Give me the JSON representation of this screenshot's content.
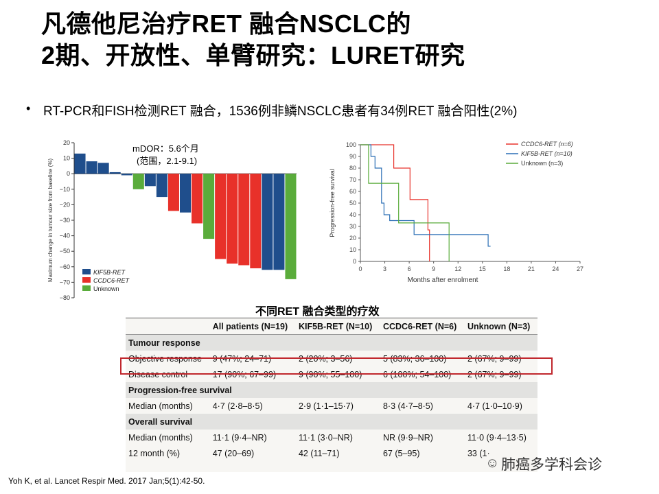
{
  "slide": {
    "title_line1": "凡德他尼治疗RET 融合NSCLC的",
    "title_line2": "2期、开放性、单臂研究：LURET研究",
    "bullet_marker": "•",
    "bullet_text": "RT-PCR和FISH检测RET 融合，1536例非鳞NSCLC患者有34例RET 融合阳性(2%)",
    "mdor_line1": "mDOR：5.6个月",
    "mdor_line2": "(范围，2.1-9.1)",
    "table_caption": "不同RET 融合类型的疗效",
    "reference": "Yoh K, et al. Lancet Respir Med. 2017 Jan;5(1):42-50.",
    "watermark": "肺癌多学科会诊",
    "watermark_icon": "wechat-icon"
  },
  "chart_data": [
    {
      "type": "bar",
      "ylabel": "Maximum change in tumour size from baseline (%)",
      "ylim": [
        -80,
        20
      ],
      "yticks": [
        "20",
        "10",
        "0",
        "−10",
        "−20",
        "−30",
        "−40",
        "−50",
        "−60",
        "−70",
        "−80"
      ],
      "legend": [
        {
          "name": "KIF5B-RET",
          "color": "#1f4e8c"
        },
        {
          "name": "CCDC6-RET",
          "color": "#e8312a"
        },
        {
          "name": "Unknown",
          "color": "#5aac3b"
        }
      ],
      "values": [
        13,
        8,
        7,
        1,
        -1,
        -10,
        -8,
        -15,
        -24,
        -25,
        -32,
        -42,
        -55,
        -58,
        -59,
        -61,
        -62,
        -62,
        -68
      ],
      "groups": [
        "KIF5B-RET",
        "KIF5B-RET",
        "KIF5B-RET",
        "KIF5B-RET",
        "KIF5B-RET",
        "Unknown",
        "KIF5B-RET",
        "KIF5B-RET",
        "CCDC6-RET",
        "KIF5B-RET",
        "CCDC6-RET",
        "Unknown",
        "CCDC6-RET",
        "CCDC6-RET",
        "CCDC6-RET",
        "CCDC6-RET",
        "KIF5B-RET",
        "KIF5B-RET",
        "Unknown"
      ]
    },
    {
      "type": "line",
      "xlabel": "Months after enrolment",
      "ylabel": "Progression-free survival",
      "xlim": [
        0,
        27
      ],
      "ylim": [
        0,
        100
      ],
      "xticks": [
        "0",
        "3",
        "6",
        "9",
        "12",
        "15",
        "18",
        "21",
        "24",
        "27"
      ],
      "yticks": [
        "0",
        "10",
        "20",
        "30",
        "40",
        "50",
        "60",
        "70",
        "80",
        "90",
        "100"
      ],
      "legend_position": "top-right",
      "series": [
        {
          "name": "CCDC6-RET (n=6)",
          "color": "#e8312a",
          "points": [
            [
              0,
              100
            ],
            [
              4.1,
              100
            ],
            [
              4.1,
              80
            ],
            [
              6.1,
              80
            ],
            [
              6.1,
              53
            ],
            [
              8.3,
              53
            ],
            [
              8.3,
              27
            ],
            [
              8.5,
              27
            ],
            [
              8.5,
              0
            ]
          ]
        },
        {
          "name": "KIF5B-RET (n=10)",
          "color": "#2a6eb5",
          "points": [
            [
              0,
              100
            ],
            [
              1.3,
              100
            ],
            [
              1.3,
              90
            ],
            [
              1.8,
              90
            ],
            [
              1.8,
              80
            ],
            [
              2.6,
              80
            ],
            [
              2.6,
              50
            ],
            [
              2.9,
              50
            ],
            [
              2.9,
              40
            ],
            [
              3.6,
              40
            ],
            [
              3.6,
              35
            ],
            [
              6.6,
              35
            ],
            [
              6.6,
              23
            ],
            [
              15.7,
              23
            ],
            [
              15.7,
              13
            ],
            [
              16,
              13
            ]
          ]
        },
        {
          "name": "Unknown (n=3)",
          "color": "#5aac3b",
          "points": [
            [
              0,
              100
            ],
            [
              1,
              100
            ],
            [
              1,
              67
            ],
            [
              4.7,
              67
            ],
            [
              4.7,
              33
            ],
            [
              10.9,
              33
            ],
            [
              10.9,
              0
            ]
          ]
        }
      ]
    }
  ],
  "table": {
    "headers": [
      "",
      "All patients (N=19)",
      "KIF5B-RET (N=10)",
      "CCDC6-RET (N=6)",
      "Unknown (N=3)"
    ],
    "sections": [
      {
        "title": "Tumour response",
        "rows": [
          {
            "label": "Objective response",
            "cells": [
              "9 (47%; 24–71)",
              "2 (20%; 3–56)",
              "5 (83%; 36–100)",
              "2 (67%; 9–99)"
            ]
          },
          {
            "label": "Disease control",
            "cells": [
              "17 (90%; 67–99)",
              "9 (90%; 55–100)",
              "6 (100%; 54–100)",
              "2 (67%; 9–99)"
            ]
          }
        ]
      },
      {
        "title": "Progression-free survival",
        "rows": [
          {
            "label": "Median (months)",
            "cells": [
              "4·7 (2·8–8·5)",
              "2·9 (1·1–15·7)",
              "8·3 (4·7–8·5)",
              "4·7 (1·0–10·9)"
            ]
          }
        ]
      },
      {
        "title": "Overall survival",
        "rows": [
          {
            "label": "Median (months)",
            "cells": [
              "11·1 (9·4–NR)",
              "11·1 (3·0–NR)",
              "NR (9·9–NR)",
              "11·0 (9·4–13·5)"
            ]
          },
          {
            "label": "12 month (%)",
            "cells": [
              "47 (20–69)",
              "42 (11–71)",
              "67 (5–95)",
              "33 (1·"
            ]
          }
        ]
      }
    ]
  }
}
